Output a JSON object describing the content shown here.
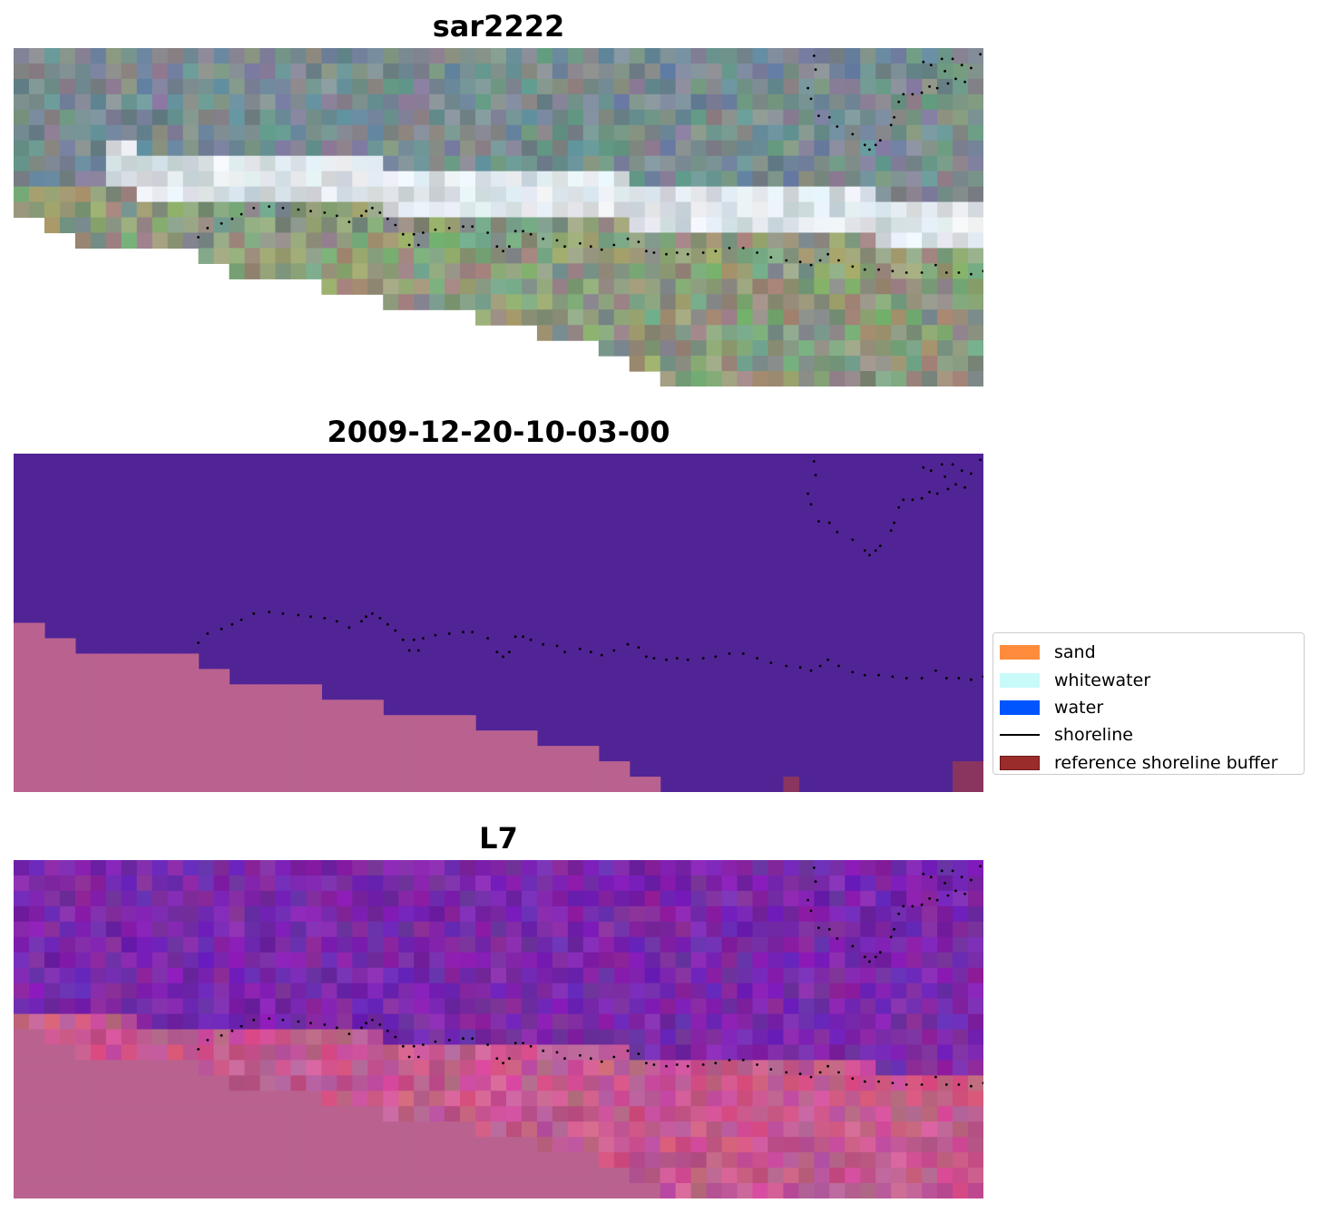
{
  "panels": [
    {
      "title": "sar2222"
    },
    {
      "title": "2009-12-20-10-03-00"
    },
    {
      "title": "L7"
    }
  ],
  "legend": {
    "items": [
      {
        "label": "sand",
        "color": "#ff8c3c",
        "kind": "patch"
      },
      {
        "label": "whitewater",
        "color": "#c8fafa",
        "kind": "patch"
      },
      {
        "label": "water",
        "color": "#0055ff",
        "kind": "patch"
      },
      {
        "label": "shoreline",
        "color": "#000000",
        "kind": "line"
      },
      {
        "label": "reference shoreline buffer",
        "color": "#9b2c2c",
        "kind": "patch"
      }
    ]
  },
  "colors": {
    "masked": "#b9628f",
    "classified_background": "#512496",
    "buffer_overlay": "#8a3560",
    "shoreline_points": "#000000"
  }
}
